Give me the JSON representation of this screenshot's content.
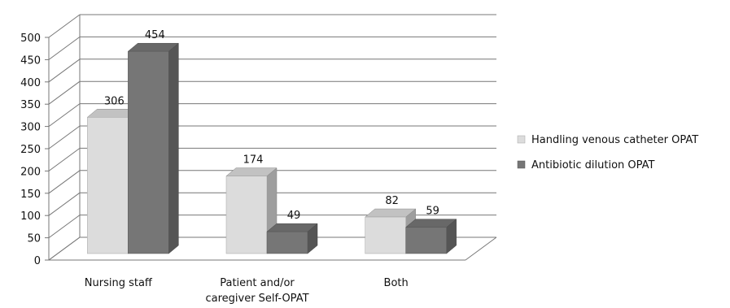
{
  "chart_data": {
    "type": "bar",
    "title": "",
    "xlabel": "",
    "ylabel": "",
    "ylim": [
      0,
      500
    ],
    "ytick_step": 50,
    "grid": true,
    "legend_position": "right",
    "style": "3d-clustered-column",
    "categories": [
      [
        "Nursing staff"
      ],
      [
        "Patient and/or",
        "caregiver Self-OPAT"
      ],
      [
        "Both"
      ]
    ],
    "series": [
      {
        "name": "Handling venous catheter  OPAT",
        "values": [
          306,
          174,
          82
        ],
        "color": "#dcdcdc"
      },
      {
        "name": "Antibiotic dilution OPAT",
        "values": [
          454,
          49,
          59
        ],
        "color": "#767676"
      }
    ]
  }
}
